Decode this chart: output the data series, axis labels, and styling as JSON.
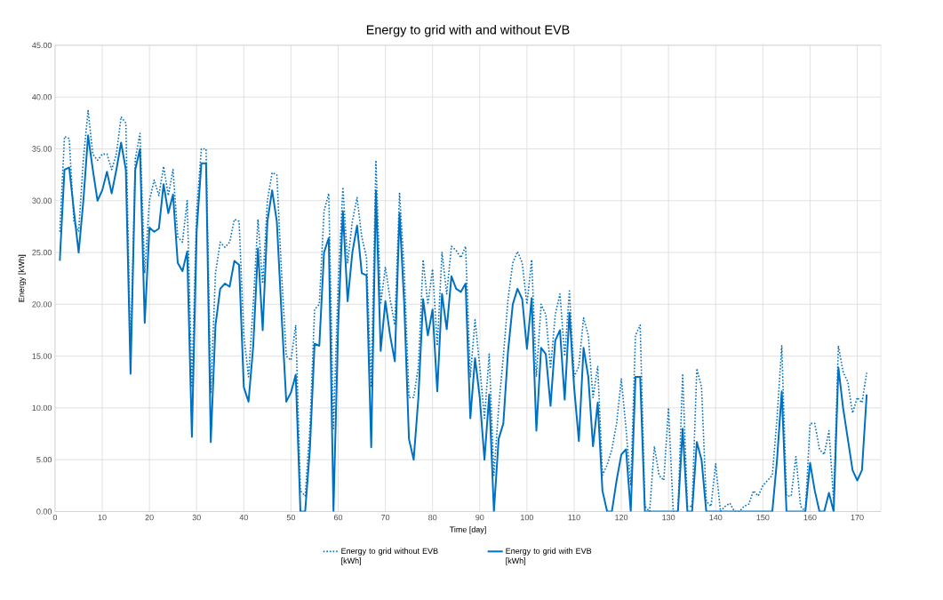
{
  "chart_data": {
    "type": "line",
    "title": "Energy to grid with and without EVB",
    "xlabel": "Time [day]",
    "ylabel": "Energy [kWh]",
    "x": [
      1,
      2,
      3,
      4,
      5,
      6,
      7,
      8,
      9,
      10,
      11,
      12,
      13,
      14,
      15,
      16,
      17,
      18,
      19,
      20,
      21,
      22,
      23,
      24,
      25,
      26,
      27,
      28,
      29,
      30,
      31,
      32,
      33,
      34,
      35,
      36,
      37,
      38,
      39,
      40,
      41,
      42,
      43,
      44,
      45,
      46,
      47,
      48,
      49,
      50,
      51,
      52,
      53,
      54,
      55,
      56,
      57,
      58,
      59,
      60,
      61,
      62,
      63,
      64,
      65,
      66,
      67,
      68,
      69,
      70,
      71,
      72,
      73,
      74,
      75,
      76,
      77,
      78,
      79,
      80,
      81,
      82,
      83,
      84,
      85,
      86,
      87,
      88,
      89,
      90,
      91,
      92,
      93,
      94,
      95,
      96,
      97,
      98,
      99,
      100,
      101,
      102,
      103,
      104,
      105,
      106,
      107,
      108,
      109,
      110,
      111,
      112,
      113,
      114,
      115,
      116,
      117,
      118,
      119,
      120,
      121,
      122,
      123,
      124,
      125,
      126,
      127,
      128,
      129,
      130,
      131,
      132,
      133,
      134,
      135,
      136,
      137,
      138,
      139,
      140,
      141,
      142,
      143,
      144,
      145,
      146,
      147,
      148,
      149,
      150,
      151,
      152,
      153,
      154,
      155,
      156,
      157,
      158,
      159,
      160,
      161,
      162,
      163,
      164,
      165,
      166,
      167,
      168,
      169,
      170,
      171,
      172
    ],
    "series": [
      {
        "name": "Energy to grid without EVB [kWh]",
        "color": "#0070c0",
        "line_style": "dotted",
        "values": [
          27,
          36.2,
          36,
          28,
          27,
          34,
          38.7,
          34.5,
          33.9,
          34.5,
          34.5,
          33,
          34.5,
          38.1,
          37.5,
          15,
          34,
          36.5,
          23,
          30,
          32,
          30.5,
          33.3,
          30.5,
          33,
          26.5,
          26,
          30,
          12,
          29,
          35,
          35,
          11.5,
          23,
          26,
          25.5,
          26,
          28.2,
          28,
          17,
          13,
          20,
          28.2,
          22,
          30,
          32.7,
          32.5,
          23,
          15,
          14.6,
          18,
          2,
          1.5,
          8,
          19.5,
          20,
          29,
          30.7,
          8,
          22,
          31.3,
          24,
          28,
          30.3,
          26.5,
          24.5,
          12,
          33.9,
          20,
          23.6,
          20.5,
          18,
          30.7,
          23.3,
          11,
          11,
          14,
          24.3,
          20,
          23.4,
          16,
          25,
          21,
          25.6,
          25.2,
          24.5,
          25.6,
          13,
          18.5,
          14,
          9,
          15.2,
          3.5,
          10,
          15,
          20.5,
          24,
          25.1,
          24,
          20,
          24.3,
          13,
          20,
          19,
          13.8,
          19,
          21,
          15,
          21.3,
          13,
          14,
          18.7,
          17,
          11,
          14,
          3.5,
          4.5,
          6,
          8.5,
          12.8,
          8,
          2.5,
          17,
          18,
          0.5,
          0,
          6.3,
          3.5,
          3,
          10,
          0,
          0,
          13.3,
          0.5,
          0.5,
          13.8,
          12,
          1,
          0.5,
          4.6,
          0,
          0.5,
          0.8,
          0,
          0,
          0.5,
          0.7,
          2,
          1.5,
          2.5,
          3,
          3.5,
          9,
          16,
          1.5,
          1.5,
          5.3,
          0.5,
          0,
          8.5,
          8.5,
          6,
          5.5,
          7.8,
          1,
          16,
          13.5,
          12.5,
          9.5,
          11,
          10.5,
          13.4
        ]
      },
      {
        "name": "Energy to grid with EVB [kWh]",
        "color": "#0070c0",
        "line_style": "solid",
        "values": [
          24.2,
          33,
          33.2,
          29,
          25,
          30,
          36.3,
          33,
          30,
          31,
          32.8,
          30.7,
          33,
          35.6,
          33,
          13.3,
          33,
          35,
          18.2,
          27.4,
          27,
          27.3,
          31.6,
          28.8,
          30.6,
          24,
          23.2,
          25.1,
          7.2,
          27,
          33.6,
          33.6,
          6.7,
          18,
          21.5,
          22,
          21.7,
          24.2,
          23.8,
          12,
          10.6,
          16,
          25.4,
          17.5,
          28,
          31,
          28,
          19,
          10.6,
          11.5,
          13.2,
          0,
          0,
          6,
          16.2,
          16,
          25,
          26.4,
          0,
          18,
          29,
          20.3,
          25,
          27.6,
          23,
          22.8,
          6.2,
          31,
          15.5,
          20.3,
          17,
          14.5,
          28.8,
          20,
          7,
          5,
          11,
          20.5,
          17,
          19.5,
          11.6,
          21,
          17.6,
          22.7,
          21.5,
          21.2,
          22,
          9,
          14.8,
          11,
          5,
          11.3,
          0,
          7,
          8.5,
          15.5,
          20,
          21.5,
          20.5,
          15.7,
          20.6,
          7.8,
          15.8,
          15.2,
          10.2,
          16.5,
          17.5,
          10.8,
          19.2,
          12,
          6.8,
          15.8,
          13,
          6.3,
          10.5,
          2,
          0,
          0,
          3,
          5.5,
          6,
          0,
          13,
          13,
          0,
          0,
          0,
          0,
          0,
          0,
          0,
          0,
          8,
          0,
          0,
          6.7,
          5,
          0,
          0,
          0,
          0,
          0,
          0,
          0,
          0,
          0,
          0,
          0,
          0,
          0,
          0,
          0,
          5,
          11.6,
          0,
          0,
          0,
          0,
          0,
          4.7,
          2,
          0,
          0,
          1.8,
          0,
          13.9,
          10,
          7,
          4,
          3,
          4,
          11.3
        ]
      }
    ],
    "xlim": [
      0,
      175
    ],
    "xticks": [
      0,
      10,
      20,
      30,
      40,
      50,
      60,
      70,
      80,
      90,
      100,
      110,
      120,
      130,
      140,
      150,
      160,
      170
    ],
    "ylim": [
      0,
      45
    ],
    "yticks": [
      {
        "value": 0,
        "label": "0.00"
      },
      {
        "value": 5,
        "label": "5.00"
      },
      {
        "value": 10,
        "label": "10.00"
      },
      {
        "value": 15,
        "label": "15.00"
      },
      {
        "value": 20,
        "label": "20.00"
      },
      {
        "value": 25,
        "label": "25.00"
      },
      {
        "value": 30,
        "label": "30.00"
      },
      {
        "value": 35,
        "label": "35.00"
      },
      {
        "value": 40,
        "label": "40.00"
      },
      {
        "value": 45,
        "label": "45.00"
      }
    ],
    "grid": true,
    "legend": "bottom",
    "marker": "none"
  }
}
